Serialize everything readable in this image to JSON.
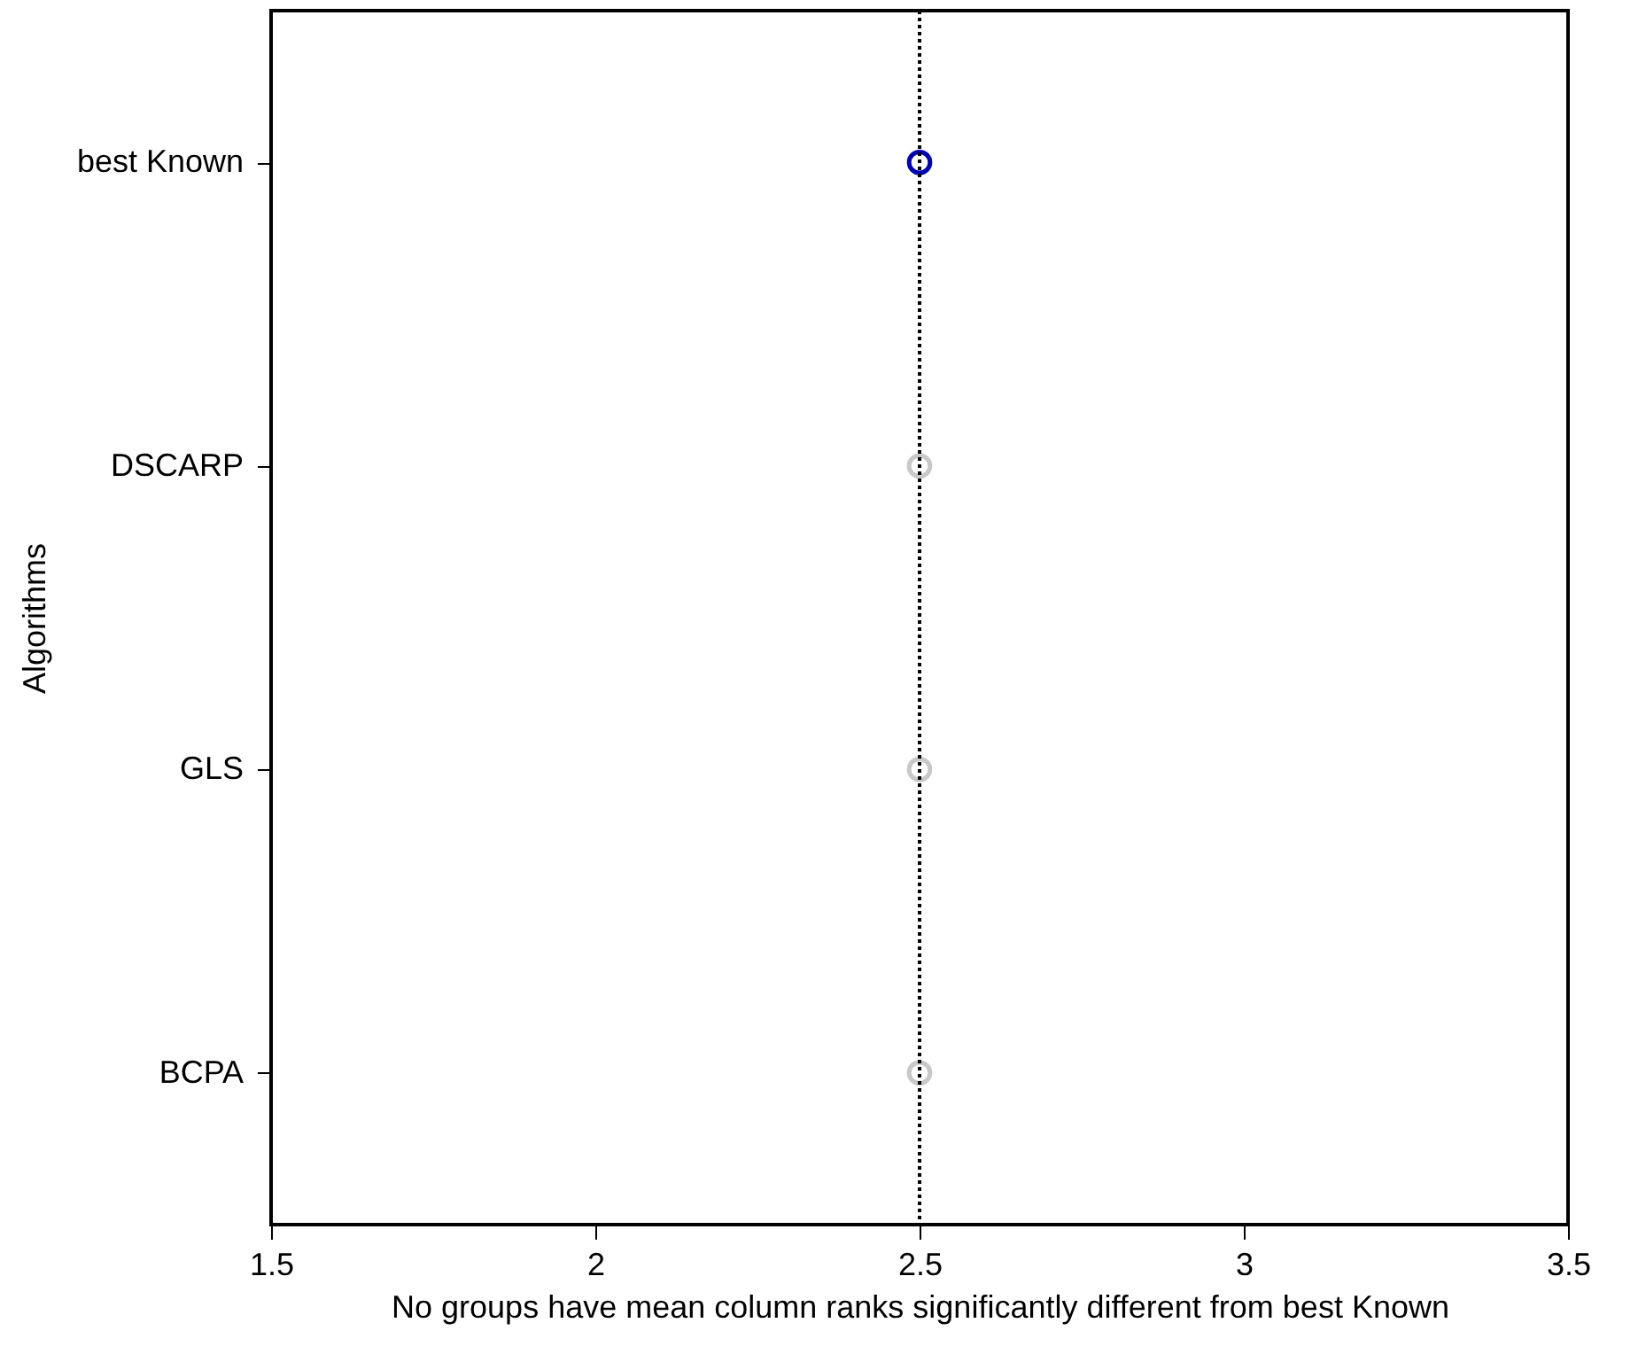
{
  "chart_data": {
    "type": "scatter",
    "orientation": "horizontal",
    "categories": [
      "best Known",
      "DSCARP",
      "GLS",
      "BCPA"
    ],
    "values": [
      2.5,
      2.5,
      2.5,
      2.5
    ],
    "colors": [
      "#0000b4",
      "#c8c8c8",
      "#c8c8c8",
      "#c8c8c8"
    ],
    "xlim": [
      1.5,
      3.5
    ],
    "xticks": [
      1.5,
      2,
      2.5,
      3,
      3.5
    ],
    "xlabel": "No groups have mean column ranks significantly different from best Known",
    "ylabel": "Algorithms",
    "ref_lines": [
      {
        "axis": "x",
        "value": 2.5,
        "line_style": "dotted",
        "color": "#000000"
      }
    ],
    "marker": "circle",
    "grid": false
  }
}
